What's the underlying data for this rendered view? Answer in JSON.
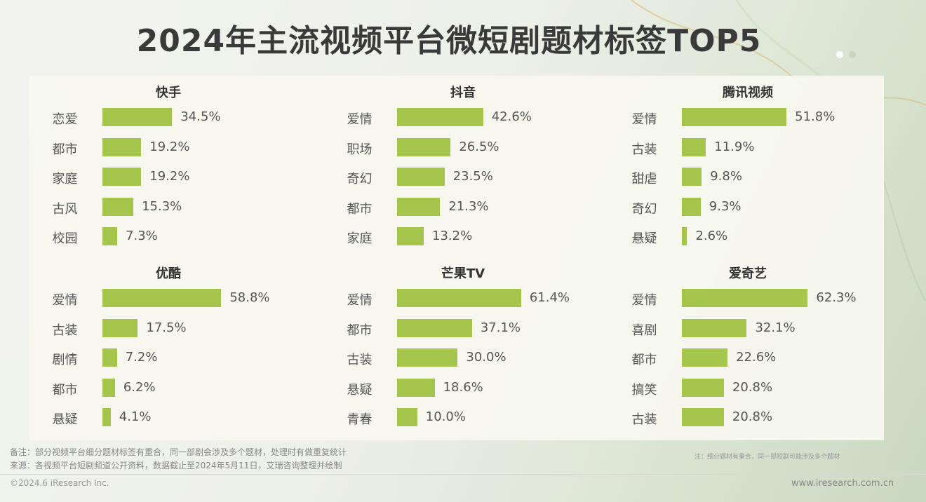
{
  "title": "2024年主流视频平台微短剧题材标签TOP5",
  "colors": {
    "bar": "#a6c54c",
    "dot_active": "#ffffff",
    "dot_inactive": "#c9d6bf"
  },
  "chart_data": [
    {
      "type": "bar",
      "title": "快手",
      "categories": [
        "恋爱",
        "都市",
        "家庭",
        "古风",
        "校园"
      ],
      "values": [
        34.5,
        19.2,
        19.2,
        15.3,
        7.3
      ],
      "labels": [
        "34.5%",
        "19.2%",
        "19.2%",
        "15.3%",
        "7.3%"
      ],
      "xlim": [
        0,
        63
      ]
    },
    {
      "type": "bar",
      "title": "抖音",
      "categories": [
        "爱情",
        "职场",
        "奇幻",
        "都市",
        "家庭"
      ],
      "values": [
        42.6,
        26.5,
        23.5,
        21.3,
        13.2
      ],
      "labels": [
        "42.6%",
        "26.5%",
        "23.5%",
        "21.3%",
        "13.2%"
      ],
      "xlim": [
        0,
        63
      ]
    },
    {
      "type": "bar",
      "title": "腾讯视频",
      "categories": [
        "爱情",
        "古装",
        "甜虐",
        "奇幻",
        "悬疑"
      ],
      "values": [
        51.8,
        11.9,
        9.8,
        9.3,
        2.6
      ],
      "labels": [
        "51.8%",
        "11.9%",
        "9.8%",
        "9.3%",
        "2.6%"
      ],
      "xlim": [
        0,
        63
      ]
    },
    {
      "type": "bar",
      "title": "优酷",
      "categories": [
        "爱情",
        "古装",
        "剧情",
        "都市",
        "悬疑"
      ],
      "values": [
        58.8,
        17.5,
        7.2,
        6.2,
        4.1
      ],
      "labels": [
        "58.8%",
        "17.5%",
        "7.2%",
        "6.2%",
        "4.1%"
      ],
      "xlim": [
        0,
        63
      ]
    },
    {
      "type": "bar",
      "title": "芒果TV",
      "categories": [
        "爱情",
        "都市",
        "古装",
        "悬疑",
        "青春"
      ],
      "values": [
        61.4,
        37.1,
        30.0,
        18.6,
        10.0
      ],
      "labels": [
        "61.4%",
        "37.1%",
        "30.0%",
        "18.6%",
        "10.0%"
      ],
      "xlim": [
        0,
        63
      ]
    },
    {
      "type": "bar",
      "title": "爱奇艺",
      "categories": [
        "爱情",
        "喜剧",
        "都市",
        "搞笑",
        "古装"
      ],
      "values": [
        62.3,
        32.1,
        22.6,
        20.8,
        20.8
      ],
      "labels": [
        "62.3%",
        "32.1%",
        "22.6%",
        "20.8%",
        "20.8%"
      ],
      "xlim": [
        0,
        63
      ]
    }
  ],
  "footer": {
    "note": "备注：部分视频平台细分题材标签有重合，同一部剧会涉及多个题材，处理时有做重复统计",
    "source": "来源：各视频平台短剧频道公开资料，数据截止至2024年5月11日，艾瑞咨询整理并绘制",
    "side_note": "注：细分题材有重合，同一部短剧可能涉及多个题材",
    "copyright": "©2024.6 iResearch Inc.",
    "website": "www.iresearch.com.cn"
  }
}
